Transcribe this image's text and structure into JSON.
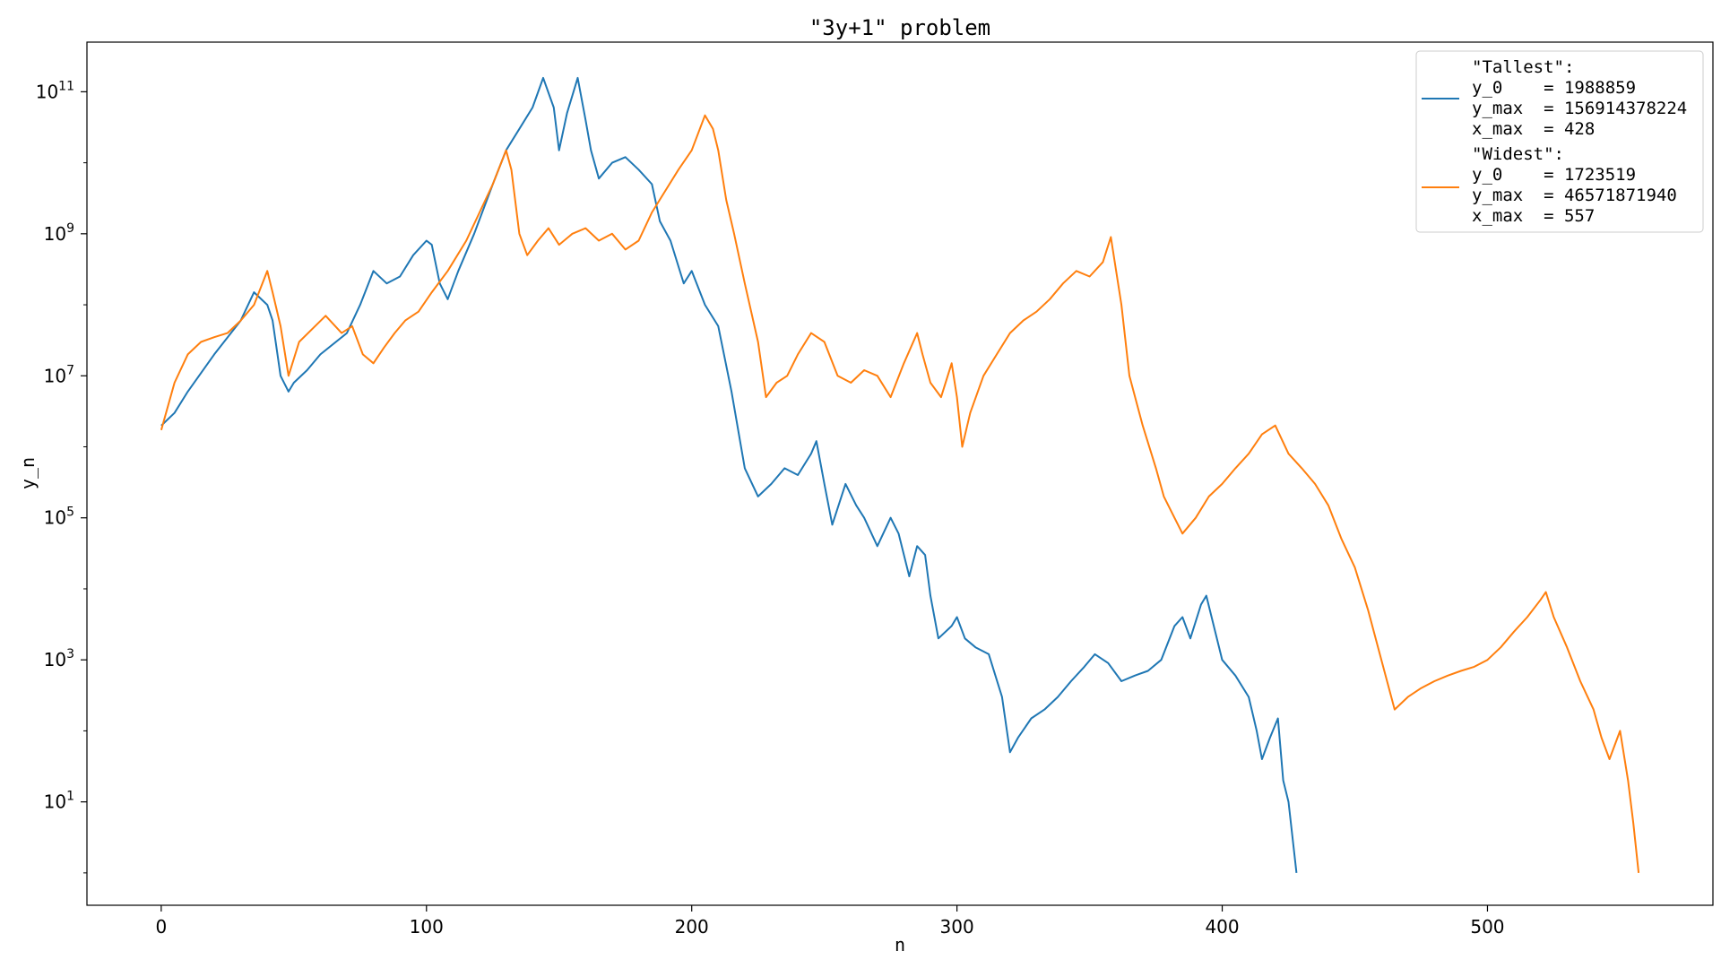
{
  "chart_data": {
    "type": "line",
    "title": "\"3y+1\" problem",
    "xlabel": "n",
    "ylabel": "y_n",
    "xlim": [
      -28,
      585
    ],
    "ylim": [
      0.35,
      500000000000
    ],
    "yscale": "log",
    "grid": false,
    "legend_position": "top-right",
    "xticks": [
      0,
      100,
      200,
      300,
      400,
      500
    ],
    "yticks": [
      {
        "value": 10,
        "base": "10",
        "exp": "1"
      },
      {
        "value": 1000,
        "base": "10",
        "exp": "3"
      },
      {
        "value": 100000,
        "base": "10",
        "exp": "5"
      },
      {
        "value": 10000000,
        "base": "10",
        "exp": "7"
      },
      {
        "value": 1000000000,
        "base": "10",
        "exp": "9"
      },
      {
        "value": 100000000000,
        "base": "10",
        "exp": "11"
      }
    ],
    "series": [
      {
        "legend": [
          "\"Tallest\":",
          "y_0    = 1988859",
          "y_max  = 156914378224",
          "x_max  = 428"
        ],
        "color": "#1f77b4",
        "start_value": 1988859,
        "peak_value": 156914378224,
        "length": 428,
        "points": [
          [
            0,
            1988859
          ],
          [
            5,
            3000000
          ],
          [
            10,
            6000000
          ],
          [
            20,
            20000000
          ],
          [
            30,
            60000000
          ],
          [
            35,
            150000000
          ],
          [
            40,
            100000000
          ],
          [
            42,
            60000000
          ],
          [
            45,
            10000000
          ],
          [
            48,
            6000000
          ],
          [
            50,
            8000000
          ],
          [
            55,
            12000000
          ],
          [
            60,
            20000000
          ],
          [
            70,
            40000000
          ],
          [
            75,
            100000000
          ],
          [
            80,
            300000000
          ],
          [
            85,
            200000000
          ],
          [
            90,
            250000000
          ],
          [
            95,
            500000000
          ],
          [
            100,
            800000000
          ],
          [
            102,
            700000000
          ],
          [
            105,
            200000000
          ],
          [
            108,
            120000000
          ],
          [
            112,
            300000000
          ],
          [
            118,
            1000000000
          ],
          [
            125,
            5000000000
          ],
          [
            130,
            15000000000
          ],
          [
            135,
            30000000000
          ],
          [
            140,
            60000000000
          ],
          [
            144,
            156914378224
          ],
          [
            148,
            60000000000
          ],
          [
            150,
            15000000000
          ],
          [
            153,
            50000000000
          ],
          [
            157,
            156914378224
          ],
          [
            160,
            40000000000
          ],
          [
            162,
            15000000000
          ],
          [
            165,
            6000000000
          ],
          [
            170,
            10000000000
          ],
          [
            175,
            12000000000
          ],
          [
            180,
            8000000000
          ],
          [
            185,
            5000000000
          ],
          [
            188,
            1500000000
          ],
          [
            192,
            800000000
          ],
          [
            197,
            200000000
          ],
          [
            200,
            300000000
          ],
          [
            205,
            100000000
          ],
          [
            210,
            50000000
          ],
          [
            215,
            6000000
          ],
          [
            220,
            500000
          ],
          [
            225,
            200000
          ],
          [
            230,
            300000
          ],
          [
            235,
            500000
          ],
          [
            240,
            400000
          ],
          [
            245,
            800000
          ],
          [
            247,
            1200000
          ],
          [
            250,
            300000
          ],
          [
            253,
            80000
          ],
          [
            258,
            300000
          ],
          [
            262,
            150000
          ],
          [
            265,
            100000
          ],
          [
            270,
            40000
          ],
          [
            275,
            100000
          ],
          [
            278,
            60000
          ],
          [
            282,
            15000
          ],
          [
            285,
            40000
          ],
          [
            288,
            30000
          ],
          [
            290,
            8000
          ],
          [
            293,
            2000
          ],
          [
            298,
            3000
          ],
          [
            300,
            4000
          ],
          [
            303,
            2000
          ],
          [
            307,
            1500
          ],
          [
            312,
            1200
          ],
          [
            317,
            300
          ],
          [
            320,
            50
          ],
          [
            323,
            80
          ],
          [
            328,
            150
          ],
          [
            333,
            200
          ],
          [
            338,
            300
          ],
          [
            343,
            500
          ],
          [
            348,
            800
          ],
          [
            352,
            1200
          ],
          [
            357,
            900
          ],
          [
            362,
            500
          ],
          [
            367,
            600
          ],
          [
            372,
            700
          ],
          [
            377,
            1000
          ],
          [
            382,
            3000
          ],
          [
            385,
            4000
          ],
          [
            388,
            2000
          ],
          [
            392,
            6000
          ],
          [
            394,
            8000
          ],
          [
            396,
            4000
          ],
          [
            400,
            1000
          ],
          [
            405,
            600
          ],
          [
            410,
            300
          ],
          [
            413,
            100
          ],
          [
            415,
            40
          ],
          [
            418,
            80
          ],
          [
            421,
            150
          ],
          [
            423,
            20
          ],
          [
            425,
            10
          ],
          [
            428,
            1
          ]
        ]
      },
      {
        "legend": [
          "\"Widest\":",
          "y_0    = 1723519",
          "y_max  = 46571871940",
          "x_max  = 557"
        ],
        "color": "#ff7f0e",
        "start_value": 1723519,
        "peak_value": 46571871940,
        "length": 557,
        "points": [
          [
            0,
            1723519
          ],
          [
            5,
            8000000
          ],
          [
            10,
            20000000
          ],
          [
            15,
            30000000
          ],
          [
            20,
            35000000
          ],
          [
            25,
            40000000
          ],
          [
            30,
            60000000
          ],
          [
            35,
            100000000
          ],
          [
            40,
            300000000
          ],
          [
            42,
            150000000
          ],
          [
            45,
            50000000
          ],
          [
            48,
            10000000
          ],
          [
            52,
            30000000
          ],
          [
            58,
            50000000
          ],
          [
            62,
            70000000
          ],
          [
            68,
            40000000
          ],
          [
            72,
            50000000
          ],
          [
            76,
            20000000
          ],
          [
            80,
            15000000
          ],
          [
            84,
            25000000
          ],
          [
            88,
            40000000
          ],
          [
            92,
            60000000
          ],
          [
            97,
            80000000
          ],
          [
            102,
            150000000
          ],
          [
            108,
            300000000
          ],
          [
            115,
            800000000
          ],
          [
            120,
            2000000000
          ],
          [
            125,
            5000000000
          ],
          [
            130,
            15000000000
          ],
          [
            132,
            8000000000
          ],
          [
            135,
            1000000000
          ],
          [
            138,
            500000000
          ],
          [
            142,
            800000000
          ],
          [
            146,
            1200000000
          ],
          [
            150,
            700000000
          ],
          [
            155,
            1000000000
          ],
          [
            160,
            1200000000
          ],
          [
            165,
            800000000
          ],
          [
            170,
            1000000000
          ],
          [
            175,
            600000000
          ],
          [
            180,
            800000000
          ],
          [
            185,
            2000000000
          ],
          [
            190,
            4000000000
          ],
          [
            195,
            8000000000
          ],
          [
            200,
            15000000000
          ],
          [
            205,
            46571871940
          ],
          [
            208,
            30000000000
          ],
          [
            210,
            15000000000
          ],
          [
            213,
            3000000000
          ],
          [
            216,
            1000000000
          ],
          [
            220,
            200000000
          ],
          [
            225,
            30000000
          ],
          [
            228,
            5000000
          ],
          [
            232,
            8000000
          ],
          [
            236,
            10000000
          ],
          [
            240,
            20000000
          ],
          [
            245,
            40000000
          ],
          [
            250,
            30000000
          ],
          [
            255,
            10000000
          ],
          [
            260,
            8000000
          ],
          [
            265,
            12000000
          ],
          [
            270,
            10000000
          ],
          [
            275,
            5000000
          ],
          [
            280,
            15000000
          ],
          [
            285,
            40000000
          ],
          [
            287,
            20000000
          ],
          [
            290,
            8000000
          ],
          [
            294,
            5000000
          ],
          [
            298,
            15000000
          ],
          [
            300,
            5000000
          ],
          [
            302,
            1000000
          ],
          [
            305,
            3000000
          ],
          [
            310,
            10000000
          ],
          [
            315,
            20000000
          ],
          [
            320,
            40000000
          ],
          [
            325,
            60000000
          ],
          [
            330,
            80000000
          ],
          [
            335,
            120000000
          ],
          [
            340,
            200000000
          ],
          [
            345,
            300000000
          ],
          [
            350,
            250000000
          ],
          [
            355,
            400000000
          ],
          [
            358,
            900000000
          ],
          [
            362,
            100000000
          ],
          [
            365,
            10000000
          ],
          [
            370,
            2000000
          ],
          [
            375,
            500000
          ],
          [
            378,
            200000
          ],
          [
            382,
            100000
          ],
          [
            385,
            60000
          ],
          [
            390,
            100000
          ],
          [
            395,
            200000
          ],
          [
            400,
            300000
          ],
          [
            405,
            500000
          ],
          [
            410,
            800000
          ],
          [
            415,
            1500000
          ],
          [
            420,
            2000000
          ],
          [
            425,
            800000
          ],
          [
            430,
            500000
          ],
          [
            435,
            300000
          ],
          [
            440,
            150000
          ],
          [
            445,
            50000
          ],
          [
            450,
            20000
          ],
          [
            455,
            5000
          ],
          [
            460,
            1000
          ],
          [
            465,
            200
          ],
          [
            470,
            300
          ],
          [
            475,
            400
          ],
          [
            480,
            500
          ],
          [
            485,
            600
          ],
          [
            490,
            700
          ],
          [
            495,
            800
          ],
          [
            500,
            1000
          ],
          [
            505,
            1500
          ],
          [
            510,
            2500
          ],
          [
            515,
            4000
          ],
          [
            520,
            7000
          ],
          [
            522,
            9000
          ],
          [
            525,
            4000
          ],
          [
            530,
            1500
          ],
          [
            535,
            500
          ],
          [
            540,
            200
          ],
          [
            543,
            80
          ],
          [
            546,
            40
          ],
          [
            550,
            100
          ],
          [
            553,
            20
          ],
          [
            555,
            5
          ],
          [
            557,
            1
          ]
        ]
      }
    ]
  }
}
